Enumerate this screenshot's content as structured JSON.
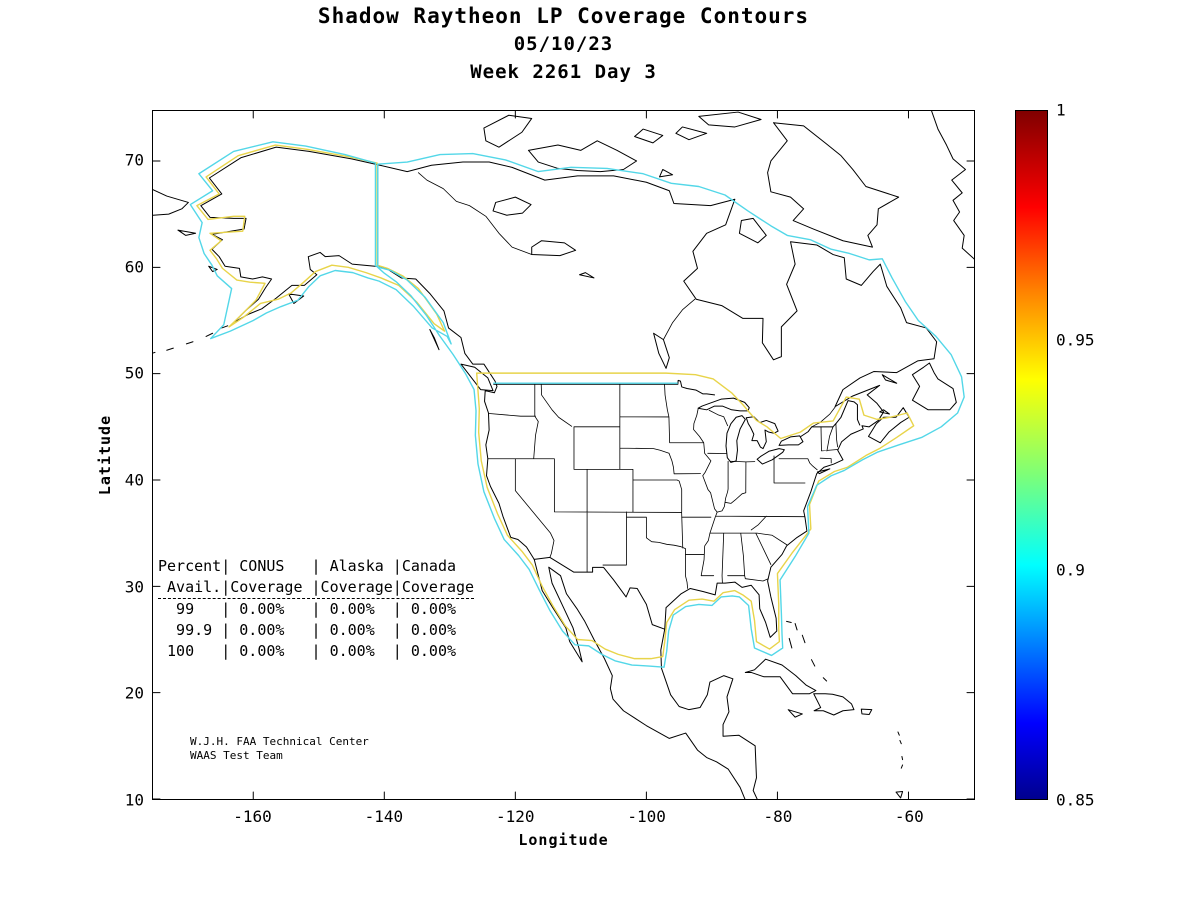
{
  "figure": {
    "title_lines": [
      "Shadow Raytheon LP Coverage Contours",
      "05/10/23",
      "Week 2261 Day 3"
    ]
  },
  "axes": {
    "xlabel": "Longitude",
    "ylabel": "Latitude",
    "x_ticks": [
      -160,
      -140,
      -120,
      -100,
      -80,
      -60
    ],
    "y_ticks": [
      10,
      20,
      30,
      40,
      50,
      60,
      70
    ],
    "x_range": [
      -175.3,
      -50
    ],
    "y_range": [
      10,
      74.7
    ]
  },
  "colorbar": {
    "min": 0.85,
    "max": 1,
    "tick_labels": [
      "1",
      "0.95",
      "0.9",
      "0.85"
    ],
    "gradient": [
      "#00008f",
      "#0000ff",
      "#00ffff",
      "#7cff79",
      "#ffff00",
      "#ff8000",
      "#ff0000",
      "#800000"
    ]
  },
  "stats_table": {
    "columns": [
      "Percent Avail.",
      "CONUS Coverage",
      "Alaska Coverage",
      "Canada Coverage"
    ],
    "rows": [
      [
        "99",
        "0.00%",
        "0.00%",
        "0.00%"
      ],
      [
        "99.9",
        "0.00%",
        "0.00%",
        "0.00%"
      ],
      [
        "100",
        "0.00%",
        "0.00%",
        "0.00%"
      ]
    ],
    "lines": [
      "Percent| CONUS   | Alaska |Canada",
      " Avail.|Coverage |Coverage|Coverage",
      "  99   | 0.00%   | 0.00%  | 0.00%",
      "  99.9 | 0.00%   | 0.00%  | 0.00%",
      " 100   | 0.00%   | 0.00%  | 0.00%"
    ]
  },
  "credit_lines": [
    "W.J.H. FAA Technical Center",
    "WAAS Test Team"
  ],
  "chart_data": {
    "type": "contour-map",
    "title": "Shadow Raytheon LP Coverage Contours",
    "subtitle_date": "05/10/23",
    "gps_week": 2261,
    "gps_day": 3,
    "region": "North America",
    "xlabel": "Longitude",
    "ylabel": "Latitude",
    "xlim": [
      -175.3,
      -50
    ],
    "ylim": [
      10,
      74.7
    ],
    "grid": false,
    "colorbar_range": [
      0.85,
      1
    ],
    "colorbar_ticks": [
      0.85,
      0.9,
      0.95,
      1
    ],
    "contours": [
      {
        "level": 0.95,
        "color": "#e8d44a",
        "regions": [
          "CONUS",
          "Alaska"
        ]
      },
      {
        "level": 0.9,
        "color": "#53d7e8",
        "regions": [
          "Alaska",
          "Canada-CONUS-Mexico"
        ]
      }
    ],
    "coverage_table": {
      "availability_percent": [
        99,
        99.9,
        100
      ],
      "conus_coverage": [
        "0.00%",
        "0.00%",
        "0.00%"
      ],
      "alaska_coverage": [
        "0.00%",
        "0.00%",
        "0.00%"
      ],
      "canada_coverage": [
        "0.00%",
        "0.00%",
        "0.00%"
      ]
    }
  }
}
